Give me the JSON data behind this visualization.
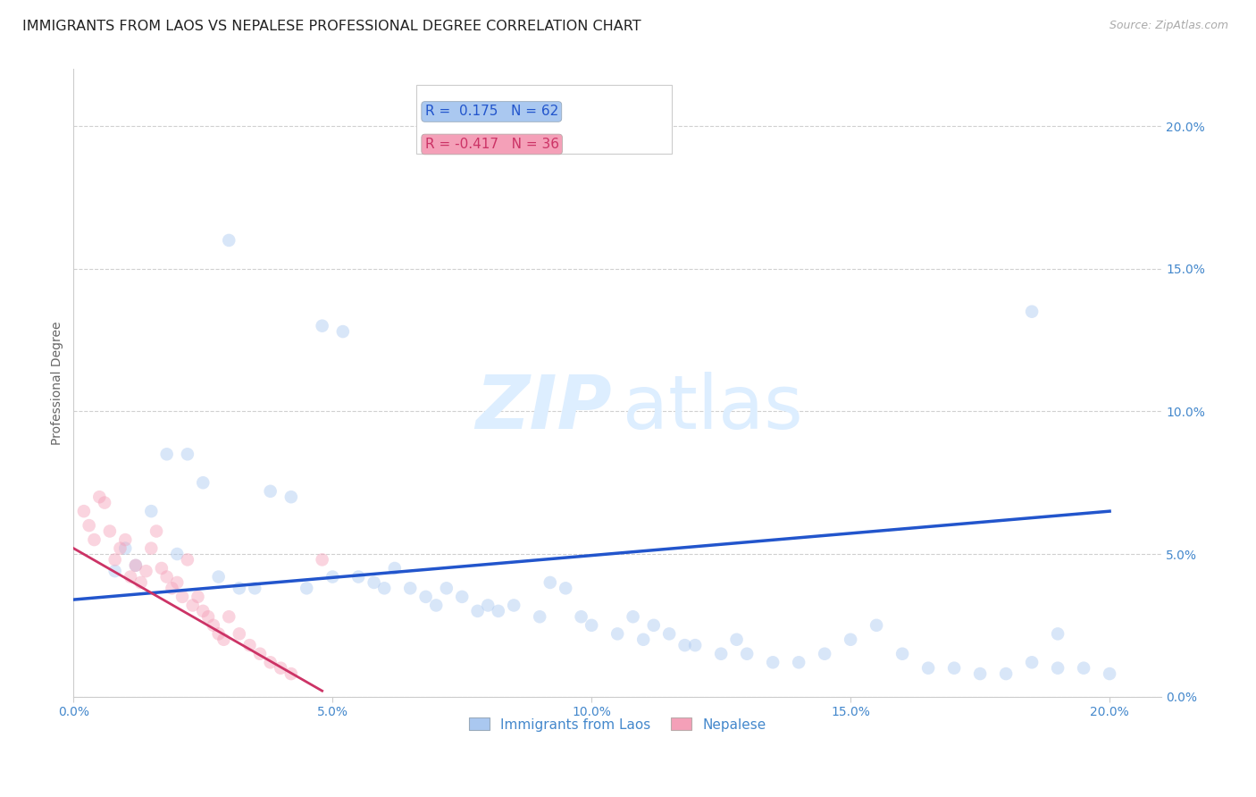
{
  "title": "IMMIGRANTS FROM LAOS VS NEPALESE PROFESSIONAL DEGREE CORRELATION CHART",
  "source": "Source: ZipAtlas.com",
  "ylabel": "Professional Degree",
  "xlim": [
    0.0,
    0.21
  ],
  "ylim": [
    0.0,
    0.22
  ],
  "legend_entries": [
    {
      "label": "Immigrants from Laos",
      "R": "0.175",
      "N": "62",
      "color": "#aac8f0"
    },
    {
      "label": "Nepalese",
      "R": "-0.417",
      "N": "36",
      "color": "#f4a0b8"
    }
  ],
  "blue_scatter_x": [
    0.03,
    0.022,
    0.018,
    0.025,
    0.015,
    0.01,
    0.012,
    0.008,
    0.02,
    0.028,
    0.032,
    0.035,
    0.038,
    0.042,
    0.045,
    0.05,
    0.055,
    0.058,
    0.06,
    0.062,
    0.065,
    0.068,
    0.07,
    0.072,
    0.075,
    0.078,
    0.08,
    0.082,
    0.085,
    0.09,
    0.092,
    0.095,
    0.098,
    0.1,
    0.105,
    0.108,
    0.11,
    0.112,
    0.115,
    0.118,
    0.12,
    0.125,
    0.128,
    0.13,
    0.135,
    0.14,
    0.145,
    0.15,
    0.155,
    0.16,
    0.165,
    0.17,
    0.175,
    0.18,
    0.185,
    0.19,
    0.195,
    0.2,
    0.048,
    0.052,
    0.185,
    0.19
  ],
  "blue_scatter_y": [
    0.16,
    0.085,
    0.085,
    0.075,
    0.065,
    0.052,
    0.046,
    0.044,
    0.05,
    0.042,
    0.038,
    0.038,
    0.072,
    0.07,
    0.038,
    0.042,
    0.042,
    0.04,
    0.038,
    0.045,
    0.038,
    0.035,
    0.032,
    0.038,
    0.035,
    0.03,
    0.032,
    0.03,
    0.032,
    0.028,
    0.04,
    0.038,
    0.028,
    0.025,
    0.022,
    0.028,
    0.02,
    0.025,
    0.022,
    0.018,
    0.018,
    0.015,
    0.02,
    0.015,
    0.012,
    0.012,
    0.015,
    0.02,
    0.025,
    0.015,
    0.01,
    0.01,
    0.008,
    0.008,
    0.012,
    0.01,
    0.01,
    0.008,
    0.13,
    0.128,
    0.135,
    0.022
  ],
  "pink_scatter_x": [
    0.002,
    0.003,
    0.004,
    0.005,
    0.006,
    0.007,
    0.008,
    0.009,
    0.01,
    0.011,
    0.012,
    0.013,
    0.014,
    0.015,
    0.016,
    0.017,
    0.018,
    0.019,
    0.02,
    0.021,
    0.022,
    0.023,
    0.024,
    0.025,
    0.026,
    0.027,
    0.028,
    0.029,
    0.03,
    0.032,
    0.034,
    0.036,
    0.038,
    0.04,
    0.042,
    0.048
  ],
  "pink_scatter_y": [
    0.065,
    0.06,
    0.055,
    0.07,
    0.068,
    0.058,
    0.048,
    0.052,
    0.055,
    0.042,
    0.046,
    0.04,
    0.044,
    0.052,
    0.058,
    0.045,
    0.042,
    0.038,
    0.04,
    0.035,
    0.048,
    0.032,
    0.035,
    0.03,
    0.028,
    0.025,
    0.022,
    0.02,
    0.028,
    0.022,
    0.018,
    0.015,
    0.012,
    0.01,
    0.008,
    0.048
  ],
  "blue_line_x0": 0.0,
  "blue_line_x1": 0.2,
  "blue_line_y0": 0.034,
  "blue_line_y1": 0.065,
  "pink_line_x0": 0.0,
  "pink_line_x1": 0.048,
  "pink_line_y0": 0.052,
  "pink_line_y1": 0.002,
  "blue_line_color": "#2255cc",
  "pink_line_color": "#cc3366",
  "scatter_alpha": 0.45,
  "scatter_size": 110,
  "background_color": "#ffffff",
  "title_fontsize": 11.5,
  "source_fontsize": 9,
  "axis_label_color": "#4488cc",
  "watermark_color": "#ddeeff",
  "watermark_fontsize": 60
}
